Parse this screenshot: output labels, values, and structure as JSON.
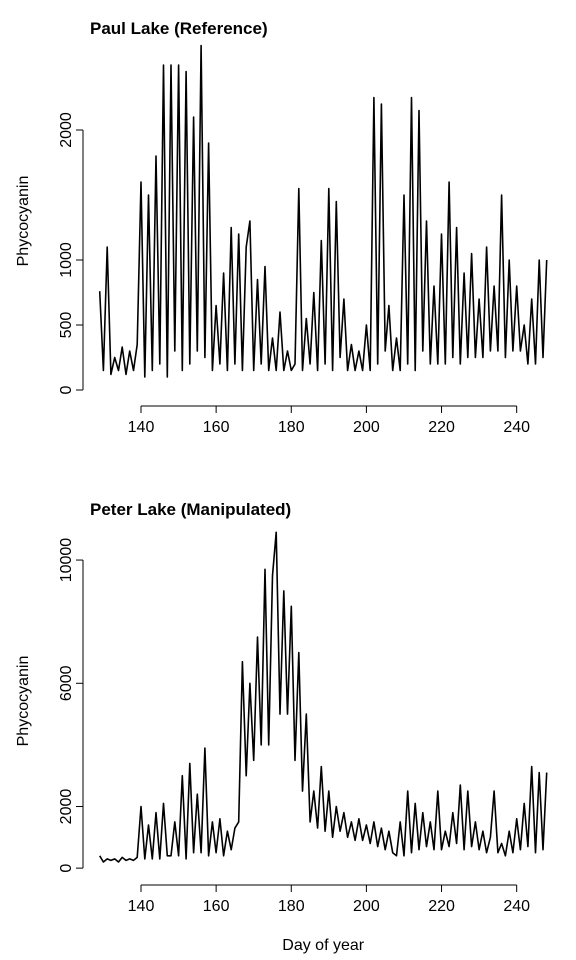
{
  "chart_data": [
    {
      "type": "line",
      "title": "Paul Lake (Reference)",
      "ylabel": "Phycocyanin",
      "color": "#000000",
      "x": [
        129,
        130,
        131,
        132,
        133,
        134,
        135,
        136,
        137,
        138,
        139,
        140,
        141,
        142,
        143,
        144,
        145,
        146,
        147,
        148,
        149,
        150,
        151,
        152,
        153,
        154,
        155,
        156,
        157,
        158,
        159,
        160,
        161,
        162,
        163,
        164,
        165,
        166,
        167,
        168,
        169,
        170,
        171,
        172,
        173,
        174,
        175,
        176,
        177,
        178,
        179,
        180,
        181,
        182,
        183,
        184,
        185,
        186,
        187,
        188,
        189,
        190,
        191,
        192,
        193,
        194,
        195,
        196,
        197,
        198,
        199,
        200,
        201,
        202,
        203,
        204,
        205,
        206,
        207,
        208,
        209,
        210,
        211,
        212,
        213,
        214,
        215,
        216,
        217,
        218,
        219,
        220,
        221,
        222,
        223,
        224,
        225,
        226,
        227,
        228,
        229,
        230,
        231,
        232,
        233,
        234,
        235,
        236,
        237,
        238,
        239,
        240,
        241,
        242,
        243,
        244,
        245,
        246,
        247,
        248
      ],
      "values": [
        760,
        150,
        1100,
        120,
        250,
        150,
        330,
        120,
        300,
        150,
        350,
        1600,
        100,
        1500,
        150,
        1800,
        200,
        2500,
        100,
        2500,
        300,
        2500,
        150,
        2450,
        200,
        2100,
        300,
        2650,
        250,
        1900,
        150,
        650,
        200,
        900,
        150,
        1250,
        200,
        1200,
        150,
        1100,
        1300,
        150,
        850,
        200,
        950,
        150,
        400,
        150,
        600,
        150,
        300,
        150,
        200,
        1550,
        150,
        550,
        200,
        750,
        150,
        1150,
        200,
        1550,
        150,
        1450,
        250,
        700,
        150,
        350,
        150,
        300,
        150,
        500,
        150,
        2250,
        200,
        2200,
        300,
        650,
        150,
        400,
        150,
        1500,
        200,
        2250,
        150,
        2150,
        300,
        1300,
        200,
        800,
        200,
        1200,
        200,
        1600,
        250,
        1250,
        200,
        900,
        250,
        1050,
        250,
        700,
        250,
        1100,
        300,
        800,
        300,
        1500,
        250,
        1000,
        300,
        800,
        300,
        500,
        200,
        700,
        200,
        1000,
        250,
        1000
      ],
      "xlim": [
        126,
        251
      ],
      "xticks": [
        140,
        160,
        180,
        200,
        220,
        240
      ],
      "ylim": [
        -100,
        2700
      ],
      "yticks": [
        0,
        500,
        1000,
        2000
      ]
    },
    {
      "type": "line",
      "title": "Peter Lake (Manipulated)",
      "ylabel": "Phycocyanin",
      "xlabel": "Day of year",
      "color": "#000000",
      "x": [
        129,
        130,
        131,
        132,
        133,
        134,
        135,
        136,
        137,
        138,
        139,
        140,
        141,
        142,
        143,
        144,
        145,
        146,
        147,
        148,
        149,
        150,
        151,
        152,
        153,
        154,
        155,
        156,
        157,
        158,
        159,
        160,
        161,
        162,
        163,
        164,
        165,
        166,
        167,
        168,
        169,
        170,
        171,
        172,
        173,
        174,
        175,
        176,
        177,
        178,
        179,
        180,
        181,
        182,
        183,
        184,
        185,
        186,
        187,
        188,
        189,
        190,
        191,
        192,
        193,
        194,
        195,
        196,
        197,
        198,
        199,
        200,
        201,
        202,
        203,
        204,
        205,
        206,
        207,
        208,
        209,
        210,
        211,
        212,
        213,
        214,
        215,
        216,
        217,
        218,
        219,
        220,
        221,
        222,
        223,
        224,
        225,
        226,
        227,
        228,
        229,
        230,
        231,
        232,
        233,
        234,
        235,
        236,
        237,
        238,
        239,
        240,
        241,
        242,
        243,
        244,
        245,
        246,
        247,
        248
      ],
      "values": [
        400,
        200,
        300,
        250,
        300,
        200,
        350,
        250,
        300,
        250,
        350,
        2000,
        300,
        1400,
        300,
        1800,
        300,
        2100,
        400,
        400,
        1500,
        400,
        3000,
        300,
        3400,
        500,
        2400,
        500,
        3900,
        400,
        1500,
        500,
        1600,
        400,
        1200,
        600,
        1300,
        1500,
        6700,
        3000,
        6000,
        3500,
        7500,
        4000,
        9700,
        4000,
        9500,
        10900,
        5000,
        9000,
        5000,
        8500,
        3500,
        7000,
        2500,
        5000,
        1500,
        2500,
        1300,
        3300,
        1200,
        2500,
        1000,
        2000,
        1200,
        1800,
        1000,
        1500,
        900,
        1600,
        900,
        1400,
        800,
        1500,
        700,
        1300,
        600,
        1200,
        500,
        400,
        1500,
        400,
        2500,
        500,
        2100,
        600,
        1800,
        700,
        1500,
        600,
        2500,
        600,
        1200,
        700,
        1800,
        800,
        2700,
        600,
        2500,
        700,
        1500,
        600,
        1200,
        500,
        1000,
        2500,
        500,
        800,
        400,
        1200,
        500,
        1600,
        600,
        2100,
        700,
        3300,
        500,
        3100,
        600,
        3100
      ],
      "xlim": [
        126,
        251
      ],
      "xticks": [
        140,
        160,
        180,
        200,
        220,
        240
      ],
      "ylim": [
        -450,
        11300
      ],
      "yticks": [
        0,
        2000,
        6000,
        10000
      ]
    }
  ]
}
